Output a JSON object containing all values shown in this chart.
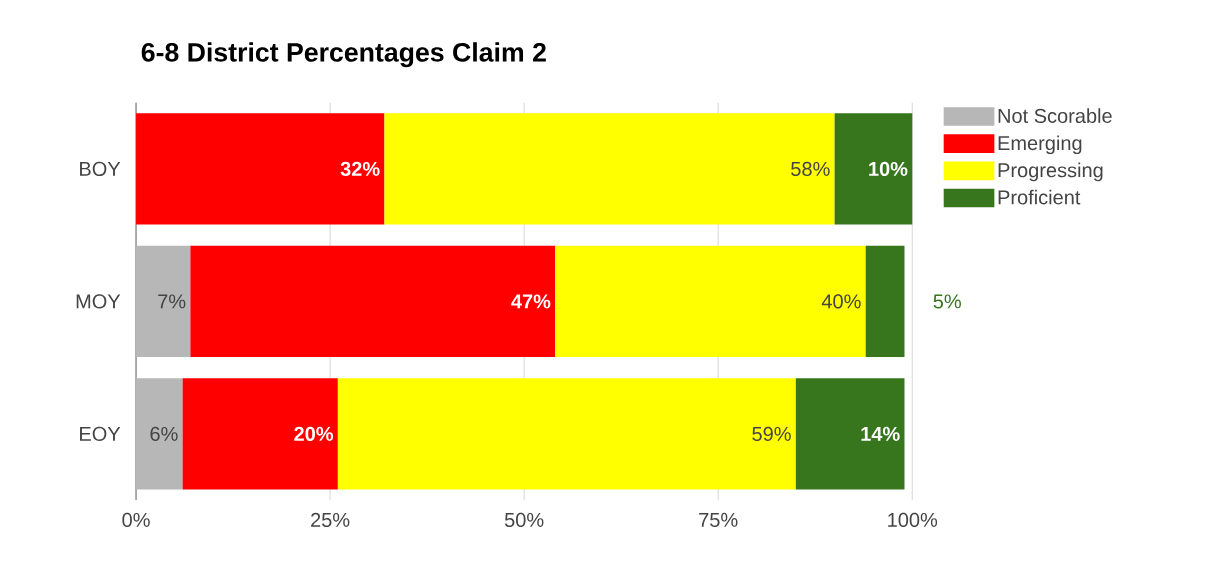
{
  "chart_data": {
    "type": "bar",
    "orientation": "horizontal",
    "stacked": true,
    "title": "6-8 District Percentages Claim 2",
    "categories": [
      "BOY",
      "MOY",
      "EOY"
    ],
    "series": [
      {
        "name": "Not Scorable",
        "color": "#b7b7b7",
        "values": [
          null,
          7,
          6
        ],
        "value_labels": [
          null,
          "7%",
          "6%"
        ]
      },
      {
        "name": "Emerging",
        "color": "#ff0000",
        "values": [
          32,
          47,
          20
        ],
        "value_labels": [
          "32%",
          "47%",
          "20%"
        ]
      },
      {
        "name": "Progressing",
        "color": "#ffff00",
        "values": [
          58,
          40,
          59
        ],
        "value_labels": [
          "58%",
          "40%",
          "59%"
        ]
      },
      {
        "name": "Proficient",
        "color": "#38761d",
        "values": [
          10,
          5,
          14
        ],
        "value_labels": [
          "10%",
          "5%",
          "14%"
        ]
      }
    ],
    "xlim": [
      0,
      100
    ],
    "xticks": [
      {
        "value": 0,
        "label": "0%"
      },
      {
        "value": 25,
        "label": "25%"
      },
      {
        "value": 50,
        "label": "50%"
      },
      {
        "value": 75,
        "label": "75%"
      },
      {
        "value": 100,
        "label": "100%"
      }
    ],
    "grid": "x",
    "legend": "top right"
  }
}
